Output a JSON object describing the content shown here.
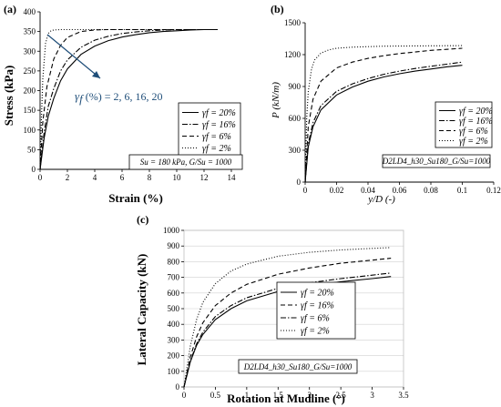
{
  "colors": {
    "axis": "#000000",
    "series": "#000000",
    "annotation": "#1f4e79",
    "grid": "#d0d0d0"
  },
  "chart_data": [
    {
      "id": "a",
      "panel_label": "(a)",
      "type": "line",
      "xlabel": "Strain (%)",
      "ylabel": "Stress (kPa)",
      "xlim": [
        0,
        14
      ],
      "ylim": [
        0,
        400
      ],
      "xticks": [
        "0",
        "2",
        "4",
        "6",
        "8",
        "10",
        "12",
        "14"
      ],
      "yticks": [
        "0",
        "50",
        "100",
        "150",
        "200",
        "250",
        "300",
        "350",
        "400"
      ],
      "grid": false,
      "legend_position": "bottom-right",
      "annotation": {
        "symbol": "γ",
        "subscript": "f",
        "text": " (%) = 2, 6, 16, 20"
      },
      "note": "Su = 180 kPa, G/Su = 1000",
      "series": [
        {
          "name": "γf = 20%",
          "dash": "solid",
          "x": [
            0,
            0.3,
            0.6,
            1,
            1.5,
            2,
            3,
            4,
            5,
            6,
            7,
            8,
            9,
            10,
            11,
            12,
            13
          ],
          "y": [
            0,
            80,
            135,
            180,
            225,
            255,
            292,
            313,
            327,
            336,
            342,
            347,
            350,
            352,
            354,
            355,
            355
          ]
        },
        {
          "name": "γf = 16%",
          "dash": "dashdot",
          "x": [
            0,
            0.3,
            0.6,
            1,
            1.5,
            2,
            3,
            4,
            5,
            6,
            7,
            8,
            9,
            10,
            11,
            12,
            13
          ],
          "y": [
            0,
            95,
            160,
            205,
            250,
            278,
            310,
            328,
            338,
            345,
            349,
            352,
            354,
            355,
            355,
            355,
            355
          ]
        },
        {
          "name": "γf = 6%",
          "dash": "dash",
          "x": [
            0,
            0.2,
            0.5,
            1,
            1.5,
            2,
            3,
            4,
            5,
            6,
            8,
            10,
            13
          ],
          "y": [
            0,
            120,
            210,
            280,
            315,
            335,
            350,
            354,
            355,
            355,
            355,
            355,
            355
          ]
        },
        {
          "name": "γf = 2%",
          "dash": "dot",
          "x": [
            0,
            0.1,
            0.2,
            0.4,
            0.6,
            0.8,
            1,
            1.5,
            2,
            3,
            5,
            13
          ],
          "y": [
            0,
            130,
            230,
            320,
            345,
            352,
            354,
            355,
            355,
            355,
            355,
            355
          ]
        }
      ]
    },
    {
      "id": "b",
      "panel_label": "(b)",
      "type": "line",
      "xlabel": "y/D (-)",
      "ylabel": "P (kN/m)",
      "xlim": [
        0,
        0.12
      ],
      "ylim": [
        0,
        1500
      ],
      "xticks": [
        "0",
        "0.02",
        "0.04",
        "0.06",
        "0.08",
        "0.1",
        "0.12"
      ],
      "yticks": [
        "0",
        "300",
        "600",
        "900",
        "1200",
        "1500"
      ],
      "grid": false,
      "legend_position": "bottom-right",
      "note": "D2LD4_h30_Su180_G/Su=1000",
      "series": [
        {
          "name": "γf = 20%",
          "dash": "solid",
          "x": [
            0,
            0.002,
            0.005,
            0.01,
            0.02,
            0.03,
            0.04,
            0.05,
            0.06,
            0.07,
            0.08,
            0.09,
            0.1
          ],
          "y": [
            0,
            330,
            520,
            680,
            820,
            895,
            950,
            990,
            1020,
            1045,
            1065,
            1085,
            1100
          ]
        },
        {
          "name": "γf = 16%",
          "dash": "dashdot",
          "x": [
            0,
            0.002,
            0.005,
            0.01,
            0.02,
            0.03,
            0.04,
            0.05,
            0.06,
            0.07,
            0.08,
            0.09,
            0.1
          ],
          "y": [
            0,
            360,
            560,
            720,
            855,
            925,
            975,
            1015,
            1045,
            1070,
            1090,
            1110,
            1130
          ]
        },
        {
          "name": "γf = 6%",
          "dash": "dash",
          "x": [
            0,
            0.002,
            0.005,
            0.01,
            0.02,
            0.03,
            0.04,
            0.05,
            0.06,
            0.07,
            0.08,
            0.09,
            0.1
          ],
          "y": [
            0,
            520,
            780,
            950,
            1075,
            1130,
            1165,
            1190,
            1210,
            1225,
            1240,
            1250,
            1260
          ]
        },
        {
          "name": "γf = 2%",
          "dash": "dot",
          "x": [
            0,
            0.001,
            0.002,
            0.004,
            0.006,
            0.01,
            0.015,
            0.02,
            0.03,
            0.05,
            0.1
          ],
          "y": [
            0,
            600,
            850,
            1060,
            1150,
            1215,
            1245,
            1260,
            1270,
            1280,
            1285
          ]
        }
      ]
    },
    {
      "id": "c",
      "panel_label": "(c)",
      "type": "line",
      "xlabel": "Rotation at Mudline (°)",
      "ylabel": "Lateral Capacity (kN)",
      "xlim": [
        0,
        3.5
      ],
      "ylim": [
        0,
        1000
      ],
      "xticks": [
        "0",
        "0.5",
        "1",
        "1.5",
        "2",
        "2.5",
        "3",
        "3.5"
      ],
      "yticks": [
        "0",
        "100",
        "200",
        "300",
        "400",
        "500",
        "600",
        "700",
        "800",
        "900",
        "1000"
      ],
      "grid": true,
      "legend_position": "right",
      "note": "D2LD4_h30_Su180_G/Su=1000",
      "series": [
        {
          "name": "γf = 20%",
          "dash": "solid",
          "x": [
            0,
            0.1,
            0.2,
            0.3,
            0.5,
            0.75,
            1,
            1.5,
            2,
            2.5,
            3,
            3.3
          ],
          "y": [
            0,
            160,
            265,
            335,
            430,
            500,
            550,
            610,
            645,
            672,
            692,
            705
          ]
        },
        {
          "name": "γf = 16%",
          "dash": "dash",
          "x": [
            0,
            0.1,
            0.2,
            0.3,
            0.5,
            0.75,
            1,
            1.5,
            2,
            2.5,
            3,
            3.3
          ],
          "y": [
            0,
            190,
            320,
            410,
            520,
            600,
            655,
            720,
            760,
            790,
            810,
            822
          ]
        },
        {
          "name": "γf = 6%",
          "dash": "dashdot",
          "x": [
            0,
            0.1,
            0.2,
            0.3,
            0.5,
            0.75,
            1,
            1.5,
            2,
            2.5,
            3,
            3.3
          ],
          "y": [
            0,
            165,
            275,
            350,
            450,
            520,
            570,
            630,
            665,
            692,
            714,
            728
          ]
        },
        {
          "name": "γf = 2%",
          "dash": "dot",
          "x": [
            0,
            0.1,
            0.2,
            0.3,
            0.5,
            0.75,
            1,
            1.5,
            2,
            2.5,
            3,
            3.3
          ],
          "y": [
            0,
            260,
            430,
            540,
            660,
            740,
            785,
            835,
            860,
            875,
            885,
            890
          ]
        }
      ]
    }
  ]
}
